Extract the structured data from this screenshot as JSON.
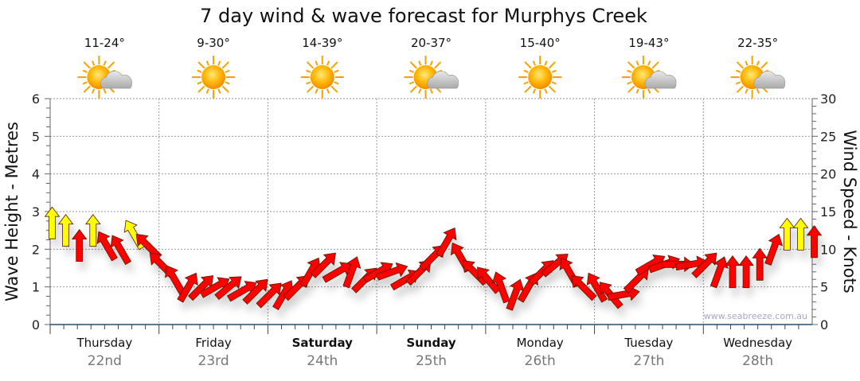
{
  "chart_data": {
    "type": "scatter",
    "title": "7 day wind & wave forecast for Murphys Creek",
    "ylabel_left": "Wave Height - Metres",
    "ylabel_right": "Wind Speed - Knots",
    "ylim_left": [
      0,
      6
    ],
    "ylim_right": [
      0,
      30
    ],
    "yticks_left": [
      "0",
      "1",
      "2",
      "3",
      "4",
      "5",
      "6"
    ],
    "yticks_right": [
      "0",
      "5",
      "10",
      "15",
      "20",
      "25",
      "30"
    ],
    "grid": true,
    "watermark": "www.seabreeze.com.au",
    "days": [
      {
        "name": "Thursday",
        "date": "22nd",
        "temp": "11-24°",
        "icon": "sun-cloud",
        "weekend": false
      },
      {
        "name": "Friday",
        "date": "23rd",
        "temp": "9-30°",
        "icon": "sun",
        "weekend": false
      },
      {
        "name": "Saturday",
        "date": "24th",
        "temp": "14-39°",
        "icon": "sun",
        "weekend": true
      },
      {
        "name": "Sunday",
        "date": "25th",
        "temp": "20-37°",
        "icon": "sun-cloud",
        "weekend": true
      },
      {
        "name": "Monday",
        "date": "26th",
        "temp": "15-40°",
        "icon": "sun",
        "weekend": false
      },
      {
        "name": "Tuesday",
        "date": "27th",
        "temp": "19-43°",
        "icon": "sun-cloud",
        "weekend": false
      },
      {
        "name": "Wednesday",
        "date": "28th",
        "temp": "22-35°",
        "icon": "sun-cloud",
        "weekend": false
      }
    ],
    "wind_series": {
      "interval_hours": 3,
      "colors": {
        "Y": "#ffff00",
        "R": "#ff0000"
      },
      "points": [
        [
          13.5,
          0,
          "Y"
        ],
        [
          12.5,
          0,
          "Y"
        ],
        [
          10.5,
          0,
          "R"
        ],
        [
          12.5,
          0,
          "Y"
        ],
        [
          10.5,
          330,
          "R"
        ],
        [
          10,
          330,
          "R"
        ],
        [
          12,
          330,
          "Y"
        ],
        [
          10.5,
          315,
          "R"
        ],
        [
          8,
          315,
          "R"
        ],
        [
          6,
          330,
          "R"
        ],
        [
          5,
          30,
          "R"
        ],
        [
          5,
          45,
          "R"
        ],
        [
          5,
          60,
          "R"
        ],
        [
          5,
          50,
          "R"
        ],
        [
          4.5,
          60,
          "R"
        ],
        [
          4.5,
          45,
          "R"
        ],
        [
          4,
          45,
          "R"
        ],
        [
          4,
          30,
          "R"
        ],
        [
          5,
          45,
          "R"
        ],
        [
          7,
          30,
          "R"
        ],
        [
          8,
          45,
          "R"
        ],
        [
          7,
          60,
          "R"
        ],
        [
          7,
          20,
          "R"
        ],
        [
          6,
          45,
          "R"
        ],
        [
          7,
          60,
          "R"
        ],
        [
          7,
          70,
          "R"
        ],
        [
          6,
          60,
          "R"
        ],
        [
          7,
          45,
          "R"
        ],
        [
          9,
          45,
          "R"
        ],
        [
          11,
          30,
          "R"
        ],
        [
          9,
          330,
          "R"
        ],
        [
          7,
          315,
          "R"
        ],
        [
          6,
          320,
          "R"
        ],
        [
          5,
          340,
          "R"
        ],
        [
          4,
          20,
          "R"
        ],
        [
          5,
          30,
          "R"
        ],
        [
          7,
          45,
          "R"
        ],
        [
          8,
          50,
          "R"
        ],
        [
          7,
          330,
          "R"
        ],
        [
          5,
          315,
          "R"
        ],
        [
          5,
          330,
          "R"
        ],
        [
          4,
          320,
          "R"
        ],
        [
          4,
          80,
          "R"
        ],
        [
          6,
          45,
          "R"
        ],
        [
          8,
          60,
          "R"
        ],
        [
          8,
          70,
          "R"
        ],
        [
          8,
          90,
          "R"
        ],
        [
          8,
          80,
          "R"
        ],
        [
          8,
          45,
          "R"
        ],
        [
          7,
          20,
          "R"
        ],
        [
          7,
          0,
          "R"
        ],
        [
          7,
          0,
          "R"
        ],
        [
          8,
          0,
          "R"
        ],
        [
          10,
          20,
          "R"
        ],
        [
          12,
          0,
          "Y"
        ],
        [
          12,
          0,
          "Y"
        ],
        [
          11,
          0,
          "R"
        ]
      ]
    }
  }
}
